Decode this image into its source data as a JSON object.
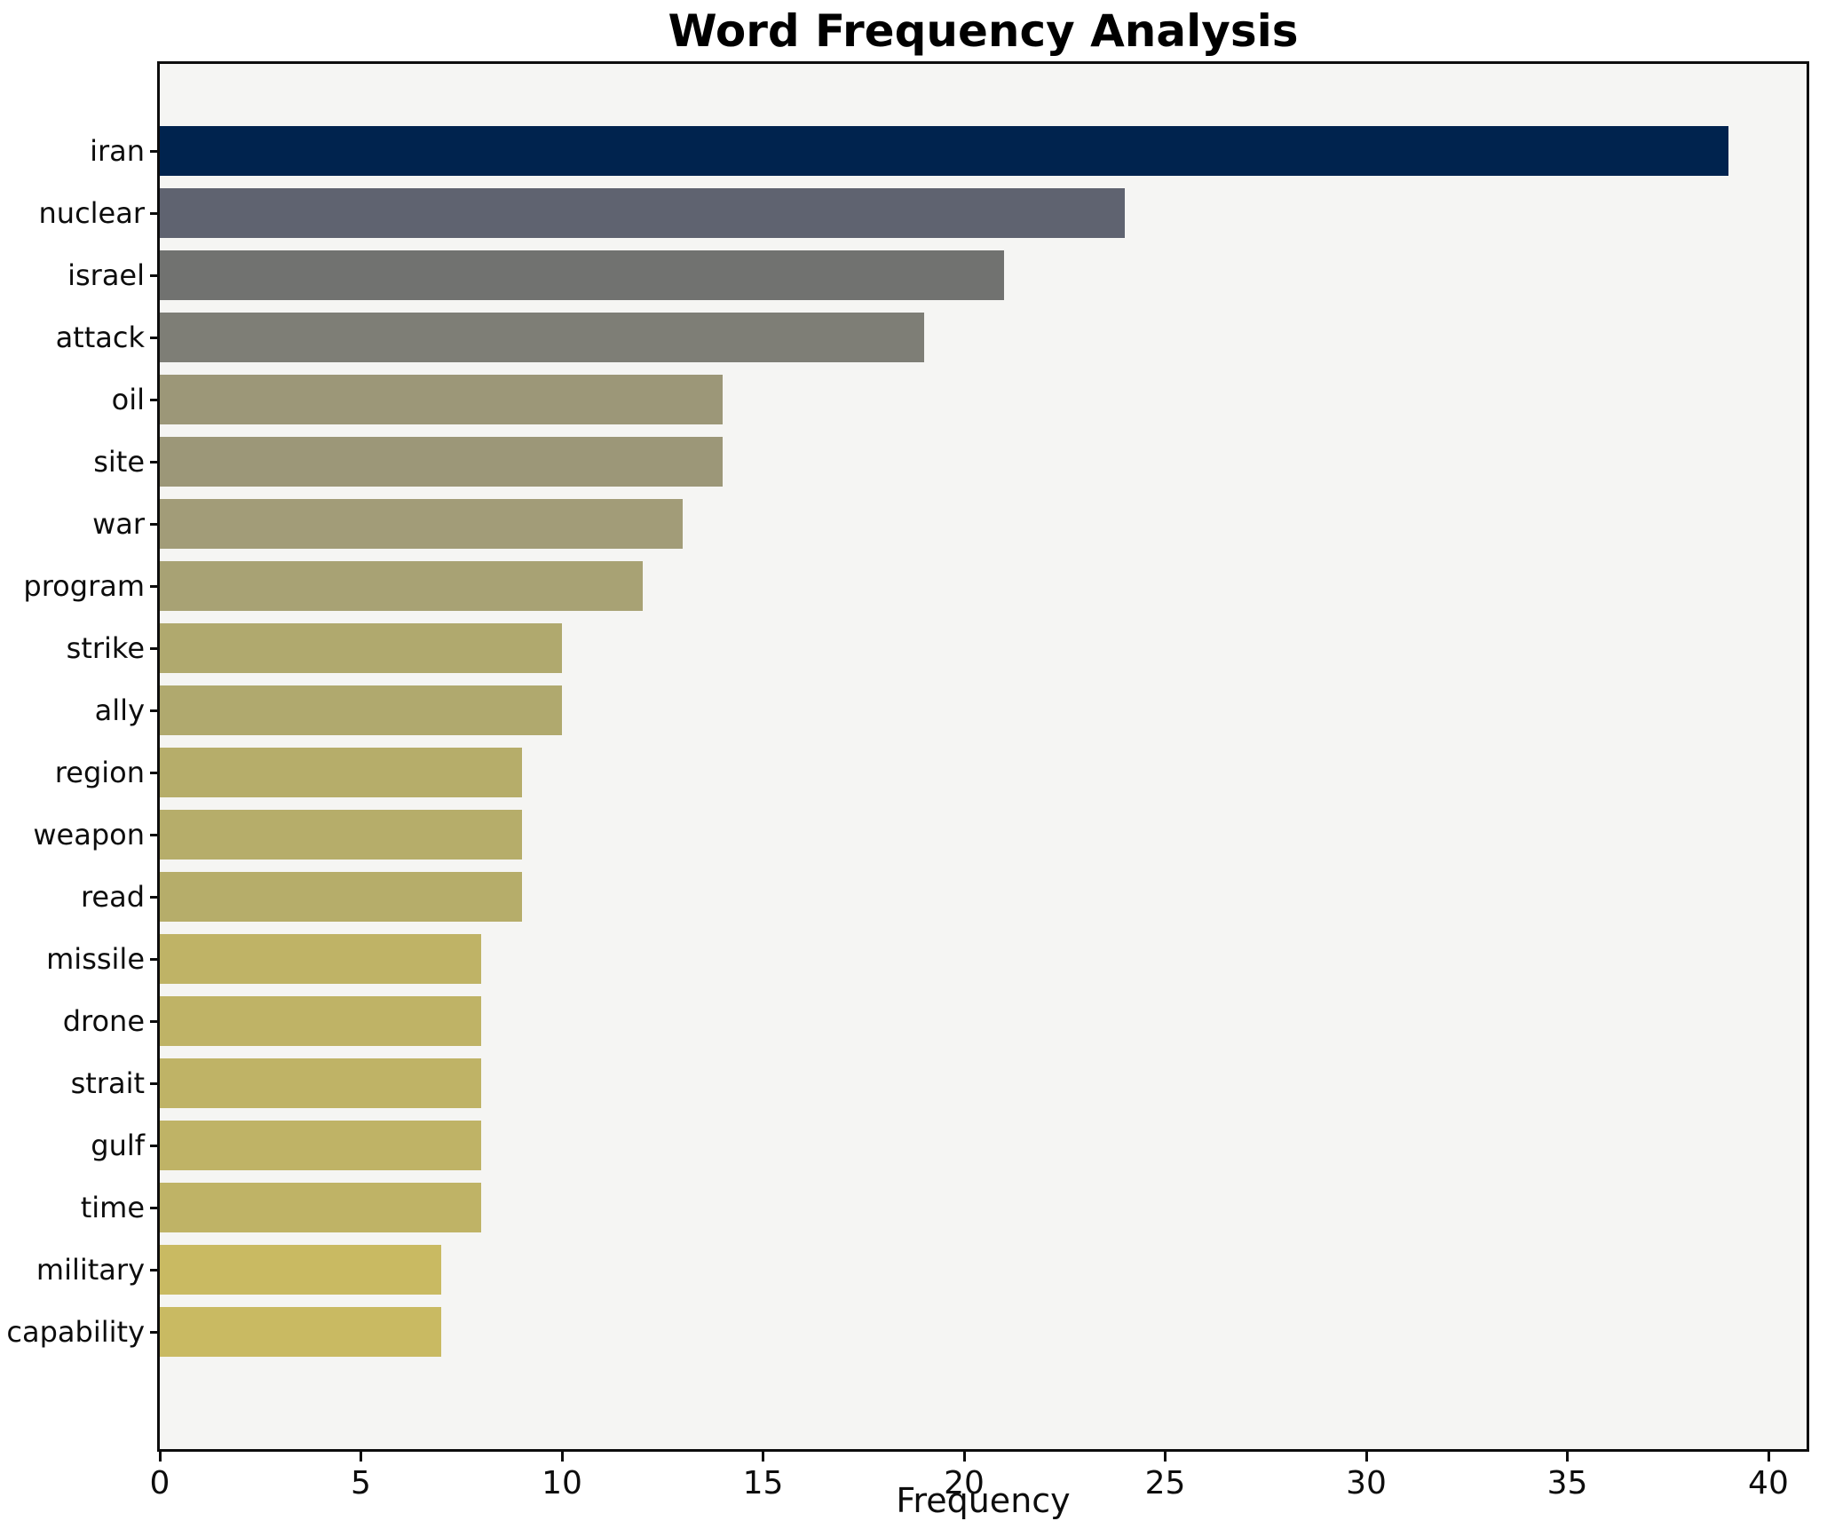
{
  "page_title": "Word Frequency Analysis",
  "chart_data": {
    "type": "bar",
    "orientation": "horizontal",
    "title": "Word Frequency Analysis",
    "xlabel": "Frequency",
    "ylabel": "",
    "xlim": [
      0,
      40.95
    ],
    "xticks": [
      0,
      5,
      10,
      15,
      20,
      25,
      30,
      35,
      40
    ],
    "grid": false,
    "legend": false,
    "plot_background": "#f5f5f3",
    "figure_background": "#ffffff",
    "spine_color": "#0d0d0d",
    "categories": [
      "iran",
      "nuclear",
      "israel",
      "attack",
      "oil",
      "site",
      "war",
      "program",
      "strike",
      "ally",
      "region",
      "weapon",
      "read",
      "missile",
      "drone",
      "strait",
      "gulf",
      "time",
      "military",
      "capability"
    ],
    "values": [
      39,
      24,
      21,
      19,
      14,
      14,
      13,
      12,
      10,
      10,
      9,
      9,
      9,
      8,
      8,
      8,
      8,
      8,
      7,
      7
    ],
    "bar_colors": [
      "#00234e",
      "#5f6370",
      "#717270",
      "#7e7e76",
      "#9c9778",
      "#9c9778",
      "#a29c78",
      "#a8a274",
      "#b0a96e",
      "#b0a96e",
      "#b6ad6a",
      "#b6ad6a",
      "#b6ad6a",
      "#bfb366",
      "#bfb366",
      "#bfb366",
      "#bfb366",
      "#bfb366",
      "#c9ba62",
      "#c9ba62"
    ]
  }
}
